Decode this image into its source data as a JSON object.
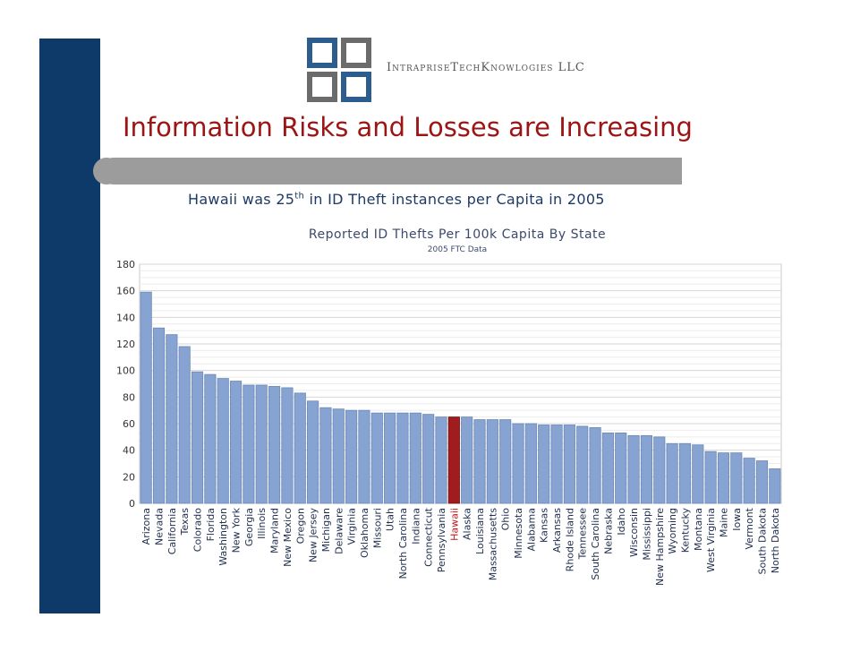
{
  "header": {
    "company": "IntrapriseTechKnowlogies LLC",
    "title": "Information Risks and Losses are Increasing"
  },
  "subtitle": {
    "pre": "Hawaii was 25",
    "sup": "th",
    "post": " in ID Theft  instances per Capita in 2005"
  },
  "colors": {
    "navy": "#0e3a6a",
    "title_red": "#9c1515",
    "bar_blue": "#86a3d1",
    "highlight_bar": "#a11d1d",
    "highlight_label": "#c0181e"
  },
  "chart_data": {
    "type": "bar",
    "title": "Reported ID Thefts Per 100k Capita By State",
    "subtitle": "2005 FTC Data",
    "ylim": [
      0,
      180
    ],
    "yticks": [
      0,
      20,
      40,
      60,
      80,
      100,
      120,
      140,
      160,
      180
    ],
    "grid": true,
    "highlight": "Hawaii",
    "categories": [
      "Arizona",
      "Nevada",
      "California",
      "Texas",
      "Colorado",
      "Florida",
      "Washington",
      "New York",
      "Georgia",
      "Illinois",
      "Maryland",
      "New Mexico",
      "Oregon",
      "New Jersey",
      "Michigan",
      "Delaware",
      "Virginia",
      "Oklahoma",
      "Missouri",
      "Utah",
      "North Carolina",
      "Indiana",
      "Connecticut",
      "Pennsylvania",
      "Hawaii",
      "Alaska",
      "Louisiana",
      "Massachusetts",
      "Ohio",
      "Minnesota",
      "Alabama",
      "Kansas",
      "Arkansas",
      "Rhode Island",
      "Tennessee",
      "South Carolina",
      "Nebraska",
      "Idaho",
      "Wisconsin",
      "Mississippi",
      "New Hampshire",
      "Wyoming",
      "Kentucky",
      "Montana",
      "West Virginia",
      "Maine",
      "Iowa",
      "Vermont",
      "South Dakota",
      "North Dakota"
    ],
    "values": [
      159,
      132,
      127,
      118,
      99,
      97,
      94,
      92,
      89,
      89,
      88,
      87,
      83,
      77,
      72,
      71,
      70,
      70,
      68,
      68,
      68,
      68,
      67,
      65,
      65,
      65,
      63,
      63,
      63,
      60,
      60,
      59,
      59,
      59,
      58,
      57,
      53,
      53,
      51,
      51,
      50,
      45,
      45,
      44,
      39,
      38,
      38,
      34,
      32,
      26
    ]
  }
}
